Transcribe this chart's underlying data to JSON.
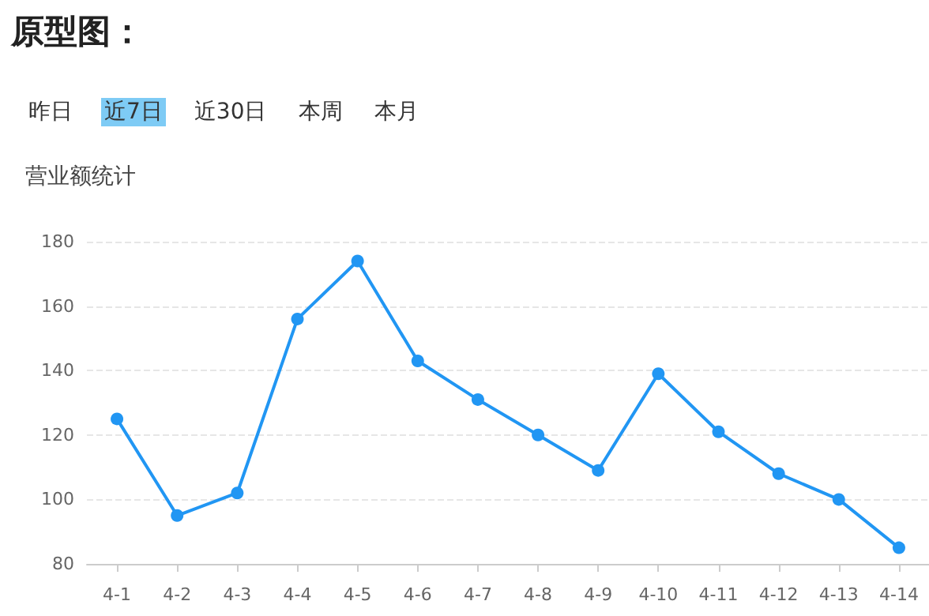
{
  "chart_data": {
    "type": "line",
    "title": "原型图：",
    "subtitle": "营业额统计",
    "annotations": [
      "昨日",
      "近7日",
      "近30日",
      "本周",
      "本月"
    ],
    "categories": [
      "4-1",
      "4-2",
      "4-3",
      "4-4",
      "4-5",
      "4-6",
      "4-7",
      "4-8",
      "4-9",
      "4-10",
      "4-11",
      "4-12",
      "4-13",
      "4-14"
    ],
    "values": [
      125,
      95,
      102,
      156,
      174,
      143,
      131,
      120,
      109,
      139,
      121,
      108,
      100,
      85
    ],
    "color": "#2196f3",
    "ylim": [
      80,
      180
    ],
    "yticks": [
      80,
      100,
      120,
      140,
      160,
      180
    ],
    "grid": "y",
    "marker": "circle",
    "line_style": "solid"
  }
}
